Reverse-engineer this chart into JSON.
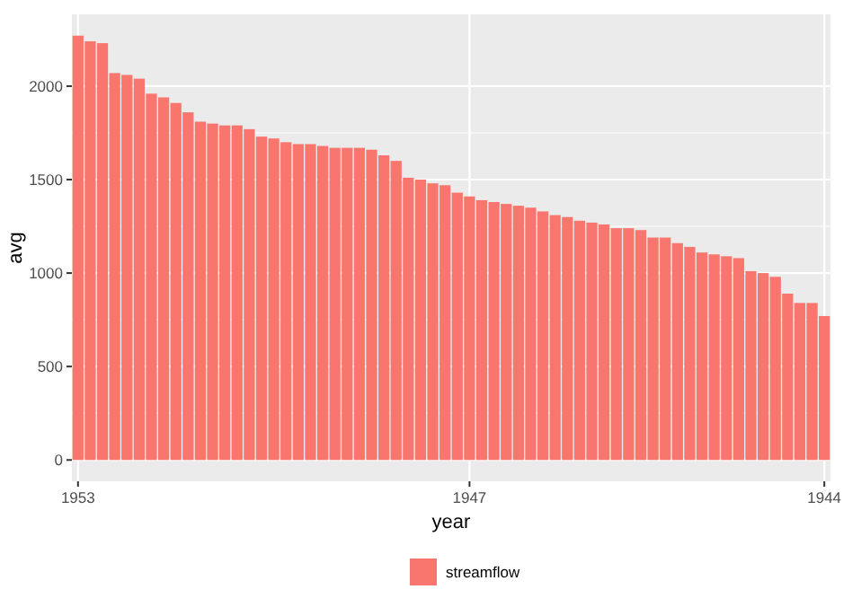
{
  "chart_data": {
    "type": "bar",
    "xlabel": "year",
    "ylabel": "avg",
    "categories": [
      "1953",
      null,
      null,
      null,
      null,
      null,
      null,
      null,
      null,
      null,
      null,
      null,
      null,
      null,
      null,
      null,
      null,
      null,
      null,
      null,
      null,
      null,
      null,
      null,
      null,
      null,
      null,
      null,
      null,
      null,
      null,
      null,
      "1947",
      null,
      null,
      null,
      null,
      null,
      null,
      null,
      null,
      null,
      null,
      null,
      null,
      null,
      null,
      null,
      null,
      null,
      null,
      null,
      null,
      null,
      null,
      null,
      null,
      null,
      null,
      null,
      null,
      "1944"
    ],
    "series": [
      {
        "name": "streamflow",
        "color": "#f8766d",
        "values": [
          2270,
          2240,
          2230,
          2070,
          2060,
          2040,
          1960,
          1940,
          1910,
          1860,
          1810,
          1800,
          1790,
          1790,
          1770,
          1730,
          1720,
          1700,
          1690,
          1690,
          1680,
          1670,
          1670,
          1670,
          1660,
          1630,
          1600,
          1510,
          1500,
          1480,
          1470,
          1430,
          1410,
          1390,
          1380,
          1370,
          1360,
          1350,
          1330,
          1310,
          1300,
          1280,
          1270,
          1260,
          1240,
          1240,
          1230,
          1190,
          1190,
          1160,
          1140,
          1110,
          1100,
          1090,
          1080,
          1010,
          1000,
          980,
          890,
          840,
          840,
          770
        ]
      }
    ],
    "ylim": [
      -114,
      2384
    ],
    "yticks": [
      0,
      500,
      1000,
      1500,
      2000
    ],
    "grid": true,
    "legend": "bottom"
  }
}
